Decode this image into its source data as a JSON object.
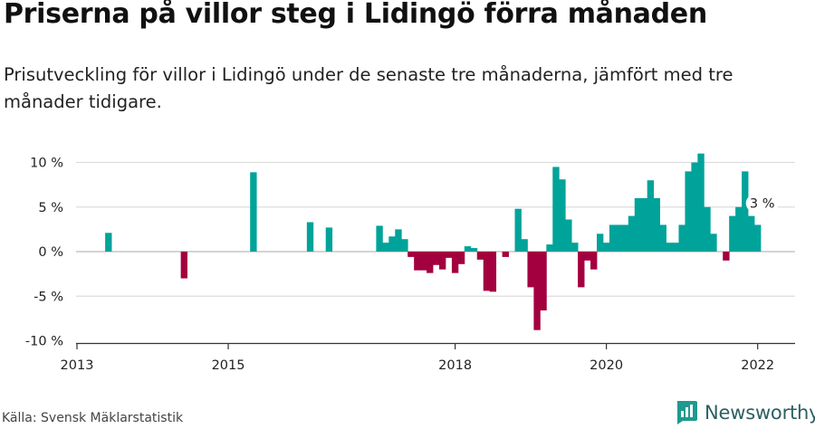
{
  "header": {
    "title": "Priserna på villor steg i Lidingö förra månaden",
    "subtitle": "Prisutveckling för villor i Lidingö under de senaste tre månaderna, jämfört med tre månader tidigare."
  },
  "footer": {
    "source": "Källa: Svensk Mäklarstatistik",
    "brand": "Newsworthy"
  },
  "colors": {
    "positive": "#00a39a",
    "negative": "#a3003f",
    "grid": "#dddddd",
    "axis": "#333333"
  },
  "chart_data": {
    "type": "bar",
    "unit": "%",
    "ylim": [
      -10,
      10
    ],
    "yticks": [
      {
        "value": 10,
        "label": "10 %"
      },
      {
        "value": 5,
        "label": "5 %"
      },
      {
        "value": 0,
        "label": "0 %"
      },
      {
        "value": -5,
        "label": "-5 %"
      },
      {
        "value": -10,
        "label": "-10 %"
      }
    ],
    "xticks": [
      {
        "year": 2013,
        "label": "2013"
      },
      {
        "year": 2015,
        "label": "2015"
      },
      {
        "year": 2018,
        "label": "2018"
      },
      {
        "year": 2020,
        "label": "2020"
      },
      {
        "year": 2022,
        "label": "2022"
      }
    ],
    "xlim": [
      "2013-01",
      "2022-06"
    ],
    "grid": true,
    "annotation": {
      "date": "2021-12",
      "label": "3 %"
    },
    "series": [
      {
        "values": [
          [
            "2013-06",
            2.1
          ],
          [
            "2014-06",
            -3.0
          ],
          [
            "2015-05",
            8.9
          ],
          [
            "2016-02",
            3.3
          ],
          [
            "2016-05",
            2.7
          ],
          [
            "2017-01",
            2.9
          ],
          [
            "2017-02",
            1.0
          ],
          [
            "2017-03",
            1.7
          ],
          [
            "2017-04",
            2.5
          ],
          [
            "2017-05",
            1.4
          ],
          [
            "2017-06",
            -0.6
          ],
          [
            "2017-07",
            -2.1
          ],
          [
            "2017-08",
            -2.1
          ],
          [
            "2017-09",
            -2.4
          ],
          [
            "2017-10",
            -1.5
          ],
          [
            "2017-11",
            -2.0
          ],
          [
            "2017-12",
            -0.7
          ],
          [
            "2018-01",
            -2.4
          ],
          [
            "2018-02",
            -1.4
          ],
          [
            "2018-03",
            0.6
          ],
          [
            "2018-04",
            0.4
          ],
          [
            "2018-05",
            -0.9
          ],
          [
            "2018-06",
            -4.4
          ],
          [
            "2018-07",
            -4.5
          ],
          [
            "2018-09",
            -0.6
          ],
          [
            "2018-11",
            4.8
          ],
          [
            "2018-12",
            1.4
          ],
          [
            "2019-01",
            -4.0
          ],
          [
            "2019-02",
            -8.8
          ],
          [
            "2019-03",
            -6.6
          ],
          [
            "2019-04",
            0.8
          ],
          [
            "2019-05",
            9.5
          ],
          [
            "2019-06",
            8.1
          ],
          [
            "2019-07",
            3.6
          ],
          [
            "2019-08",
            1.0
          ],
          [
            "2019-09",
            -4.0
          ],
          [
            "2019-10",
            -1.0
          ],
          [
            "2019-11",
            -2.0
          ],
          [
            "2019-12",
            2.0
          ],
          [
            "2020-01",
            1.0
          ],
          [
            "2020-02",
            3.0
          ],
          [
            "2020-03",
            3.0
          ],
          [
            "2020-04",
            3.0
          ],
          [
            "2020-05",
            4.0
          ],
          [
            "2020-06",
            6.0
          ],
          [
            "2020-07",
            6.0
          ],
          [
            "2020-08",
            8.0
          ],
          [
            "2020-09",
            6.0
          ],
          [
            "2020-10",
            3.0
          ],
          [
            "2020-11",
            1.0
          ],
          [
            "2020-12",
            1.0
          ],
          [
            "2021-01",
            3.0
          ],
          [
            "2021-02",
            9.0
          ],
          [
            "2021-03",
            10.0
          ],
          [
            "2021-04",
            11.0
          ],
          [
            "2021-05",
            5.0
          ],
          [
            "2021-06",
            2.0
          ],
          [
            "2021-08",
            -1.0
          ],
          [
            "2021-09",
            4.0
          ],
          [
            "2021-10",
            5.0
          ],
          [
            "2021-11",
            9.0
          ],
          [
            "2021-12",
            4.0
          ],
          [
            "2022-01",
            3.0
          ]
        ]
      }
    ]
  }
}
